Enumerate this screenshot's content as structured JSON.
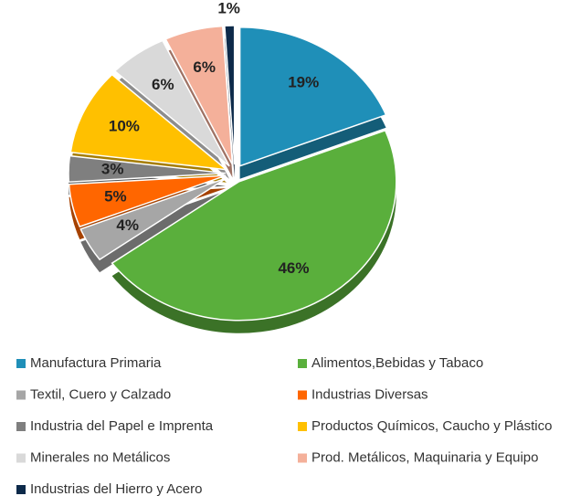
{
  "chart_data": {
    "type": "pie",
    "categories": [
      "Manufactura Primaria",
      "Alimentos,Bebidas y Tabaco",
      "Textil, Cuero y Calzado",
      "Industrias Diversas",
      "Industria del Papel e Imprenta",
      "Productos Químicos, Caucho y Plástico",
      "Minerales no Metálicos",
      "Prod. Metálicos, Maquinaria y Equipo",
      "Industrias del Hierro y Acero"
    ],
    "values": [
      19,
      46,
      4,
      5,
      3,
      10,
      6,
      6,
      1
    ],
    "value_labels": [
      "19%",
      "46%",
      "4%",
      "5%",
      "3%",
      "10%",
      "6%",
      "6%",
      "1%"
    ],
    "colors": [
      "#1f8fb8",
      "#5aaf3c",
      "#a6a6a6",
      "#ff6600",
      "#7f7f7f",
      "#ffc000",
      "#d9d9d9",
      "#f4b09a",
      "#0d2a4a"
    ],
    "legend": "bottom"
  }
}
